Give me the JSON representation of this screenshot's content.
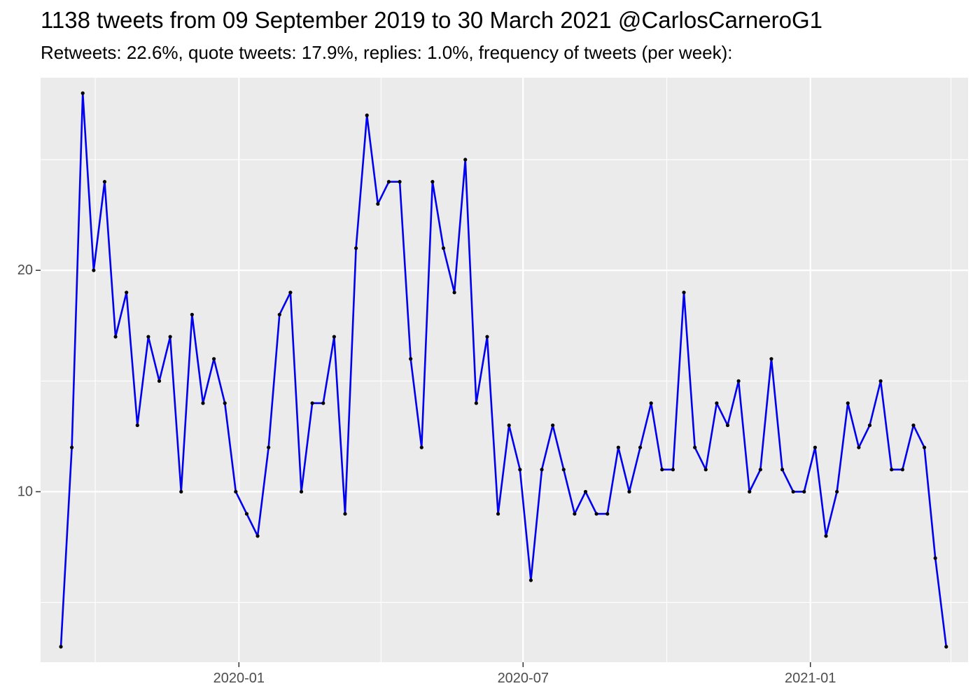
{
  "title": "1138 tweets from 09 September 2019 to 30 March 2021 @CarlosCarneroG1",
  "subtitle": "Retweets: 22.6%, quote tweets: 17.9%, replies: 1.0%, frequency of tweets (per week):",
  "colors": {
    "panel_background": "#ebebeb",
    "grid": "#ffffff",
    "line": "#0000ee",
    "point": "#000000",
    "tick_text": "#4d4d4d"
  },
  "chart_data": {
    "type": "line",
    "title": "1138 tweets from 09 September 2019 to 30 March 2021 @CarlosCarneroG1",
    "subtitle": "Retweets: 22.6%, quote tweets: 17.9%, replies: 1.0%, frequency of tweets (per week):",
    "xlabel": "",
    "ylabel": "",
    "x_axis_type": "date",
    "xlim": [
      "2019-08-27",
      "2021-04-12"
    ],
    "ylim": [
      2.3,
      28.7
    ],
    "grid": true,
    "legend": "none",
    "x_ticks": [
      {
        "value": "2020-01-01",
        "label": "2020-01"
      },
      {
        "value": "2020-07-01",
        "label": "2020-07"
      },
      {
        "value": "2021-01-01",
        "label": "2021-01"
      }
    ],
    "x_minor_ticks": [
      "2019-10-01",
      "2020-04-01",
      "2020-10-01",
      "2021-04-01"
    ],
    "y_ticks": [
      {
        "value": 10,
        "label": "10"
      },
      {
        "value": 20,
        "label": "20"
      }
    ],
    "y_minor_ticks": [
      5,
      15,
      25
    ],
    "series": [
      {
        "x": [
          "2019-09-09",
          "2019-09-16",
          "2019-09-23",
          "2019-09-30",
          "2019-10-07",
          "2019-10-14",
          "2019-10-21",
          "2019-10-28",
          "2019-11-04",
          "2019-11-11",
          "2019-11-18",
          "2019-11-25",
          "2019-12-02",
          "2019-12-09",
          "2019-12-16",
          "2019-12-23",
          "2019-12-30",
          "2020-01-06",
          "2020-01-13",
          "2020-01-20",
          "2020-01-27",
          "2020-02-03",
          "2020-02-10",
          "2020-02-17",
          "2020-02-24",
          "2020-03-02",
          "2020-03-09",
          "2020-03-16",
          "2020-03-23",
          "2020-03-30",
          "2020-04-06",
          "2020-04-13",
          "2020-04-20",
          "2020-04-27",
          "2020-05-04",
          "2020-05-11",
          "2020-05-18",
          "2020-05-25",
          "2020-06-01",
          "2020-06-08",
          "2020-06-15",
          "2020-06-22",
          "2020-06-29",
          "2020-07-06",
          "2020-07-13",
          "2020-07-20",
          "2020-07-27",
          "2020-08-03",
          "2020-08-10",
          "2020-08-17",
          "2020-08-24",
          "2020-08-31",
          "2020-09-07",
          "2020-09-14",
          "2020-09-21",
          "2020-09-28",
          "2020-10-05",
          "2020-10-12",
          "2020-10-19",
          "2020-10-26",
          "2020-11-02",
          "2020-11-09",
          "2020-11-16",
          "2020-11-23",
          "2020-11-30",
          "2020-12-07",
          "2020-12-14",
          "2020-12-21",
          "2020-12-28",
          "2021-01-04",
          "2021-01-11",
          "2021-01-18",
          "2021-01-25",
          "2021-02-01",
          "2021-02-08",
          "2021-02-15",
          "2021-02-22",
          "2021-03-01",
          "2021-03-08",
          "2021-03-15",
          "2021-03-22",
          "2021-03-29"
        ],
        "y": [
          3,
          12,
          28,
          20,
          24,
          17,
          19,
          13,
          17,
          15,
          17,
          10,
          18,
          14,
          16,
          14,
          10,
          9,
          8,
          12,
          18,
          19,
          10,
          14,
          14,
          17,
          9,
          21,
          27,
          23,
          24,
          24,
          16,
          12,
          24,
          21,
          19,
          25,
          14,
          17,
          9,
          13,
          11,
          6,
          11,
          13,
          11,
          9,
          10,
          9,
          9,
          12,
          10,
          12,
          14,
          11,
          11,
          19,
          12,
          11,
          14,
          13,
          15,
          10,
          11,
          16,
          11,
          10,
          10,
          12,
          8,
          10,
          14,
          12,
          13,
          15,
          11,
          11,
          13,
          12,
          7,
          3
        ]
      }
    ]
  }
}
